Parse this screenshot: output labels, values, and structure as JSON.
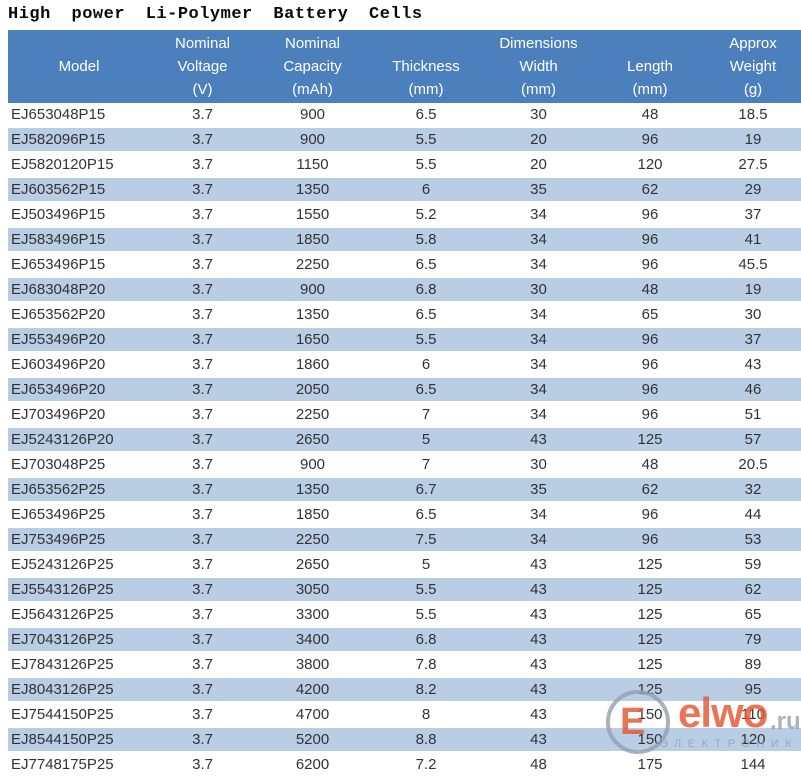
{
  "title": "High power Li-Polymer Battery Cells",
  "colors": {
    "header_bg": "#4C80BC",
    "stripe_bg": "#B9CDE4",
    "header_text": "#FFFFFF",
    "body_text": "#333333",
    "watermark_orange": "#E4532D",
    "watermark_gray": "#93A1B1"
  },
  "table": {
    "header": {
      "columns": [
        {
          "id": "model",
          "line1": "",
          "line2": "Model",
          "line3": ""
        },
        {
          "id": "voltage",
          "line1": "Nominal",
          "line2": "Voltage",
          "line3": "(V)"
        },
        {
          "id": "capacity",
          "line1": "Nominal",
          "line2": "Capacity",
          "line3": "(mAh)"
        },
        {
          "id": "thickness",
          "line1": "",
          "line2": "Thickness",
          "line3": "(mm)"
        },
        {
          "id": "width",
          "line1": "Dimensions",
          "line2": "Width",
          "line3": "(mm)"
        },
        {
          "id": "length",
          "line1": "",
          "line2": "Length",
          "line3": "(mm)"
        },
        {
          "id": "weight",
          "line1": "Approx",
          "line2": "Weight",
          "line3": "(g)"
        }
      ]
    },
    "rows": [
      [
        "EJ653048P15",
        "3.7",
        "900",
        "6.5",
        "30",
        "48",
        "18.5"
      ],
      [
        "EJ582096P15",
        "3.7",
        "900",
        "5.5",
        "20",
        "96",
        "19"
      ],
      [
        "EJ5820120P15",
        "3.7",
        "1150",
        "5.5",
        "20",
        "120",
        "27.5"
      ],
      [
        "EJ603562P15",
        "3.7",
        "1350",
        "6",
        "35",
        "62",
        "29"
      ],
      [
        "EJ503496P15",
        "3.7",
        "1550",
        "5.2",
        "34",
        "96",
        "37"
      ],
      [
        "EJ583496P15",
        "3.7",
        "1850",
        "5.8",
        "34",
        "96",
        "41"
      ],
      [
        "EJ653496P15",
        "3.7",
        "2250",
        "6.5",
        "34",
        "96",
        "45.5"
      ],
      [
        "EJ683048P20",
        "3.7",
        "900",
        "6.8",
        "30",
        "48",
        "19"
      ],
      [
        "EJ653562P20",
        "3.7",
        "1350",
        "6.5",
        "34",
        "65",
        "30"
      ],
      [
        "EJ553496P20",
        "3.7",
        "1650",
        "5.5",
        "34",
        "96",
        "37"
      ],
      [
        "EJ603496P20",
        "3.7",
        "1860",
        "6",
        "34",
        "96",
        "43"
      ],
      [
        "EJ653496P20",
        "3.7",
        "2050",
        "6.5",
        "34",
        "96",
        "46"
      ],
      [
        "EJ703496P20",
        "3.7",
        "2250",
        "7",
        "34",
        "96",
        "51"
      ],
      [
        "EJ5243126P20",
        "3.7",
        "2650",
        "5",
        "43",
        "125",
        "57"
      ],
      [
        "EJ703048P25",
        "3.7",
        "900",
        "7",
        "30",
        "48",
        "20.5"
      ],
      [
        "EJ653562P25",
        "3.7",
        "1350",
        "6.7",
        "35",
        "62",
        "32"
      ],
      [
        "EJ653496P25",
        "3.7",
        "1850",
        "6.5",
        "34",
        "96",
        "44"
      ],
      [
        "EJ753496P25",
        "3.7",
        "2250",
        "7.5",
        "34",
        "96",
        "53"
      ],
      [
        "EJ5243126P25",
        "3.7",
        "2650",
        "5",
        "43",
        "125",
        "59"
      ],
      [
        "EJ5543126P25",
        "3.7",
        "3050",
        "5.5",
        "43",
        "125",
        "62"
      ],
      [
        "EJ5643126P25",
        "3.7",
        "3300",
        "5.5",
        "43",
        "125",
        "65"
      ],
      [
        "EJ7043126P25",
        "3.7",
        "3400",
        "6.8",
        "43",
        "125",
        "79"
      ],
      [
        "EJ7843126P25",
        "3.7",
        "3800",
        "7.8",
        "43",
        "125",
        "89"
      ],
      [
        "EJ8043126P25",
        "3.7",
        "4200",
        "8.2",
        "43",
        "125",
        "95"
      ],
      [
        "EJ7544150P25",
        "3.7",
        "4700",
        "8",
        "43",
        "150",
        "110"
      ],
      [
        "EJ8544150P25",
        "3.7",
        "5200",
        "8.8",
        "43",
        "150",
        "120"
      ],
      [
        "EJ7748175P25",
        "3.7",
        "6200",
        "7.2",
        "48",
        "175",
        "144"
      ]
    ]
  },
  "watermark": {
    "logo_letter": "E",
    "brand": "elwo",
    "domain": ".ru",
    "tagline": "ЭЛЕКТРОНИК"
  }
}
